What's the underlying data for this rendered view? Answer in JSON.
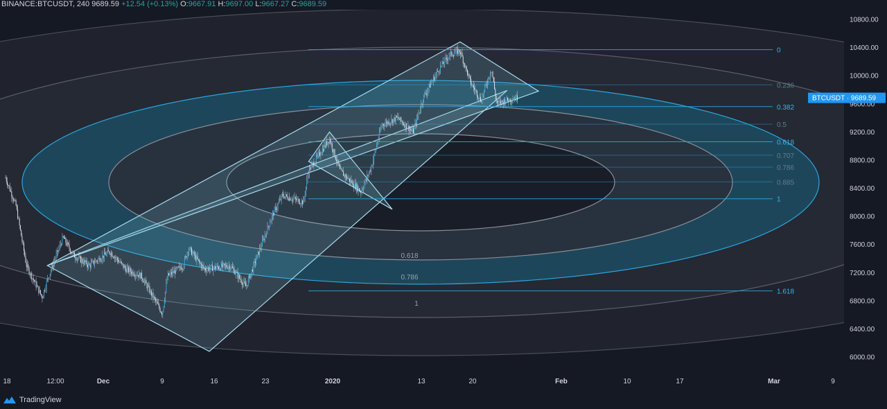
{
  "header": {
    "symbol": "BINANCE:BTCUSDT",
    "interval": "240",
    "price": "9689.59",
    "change": "+12.54 (+0.13%)",
    "o_label": "O:",
    "o": "9667.91",
    "h_label": "H:",
    "h": "9697.00",
    "l_label": "L:",
    "l": "9667.27",
    "c_label": "C:",
    "c": "9689.59"
  },
  "price_tag": {
    "symbol": "BTCUSDT",
    "value": "9689.59"
  },
  "brand": "TradingView",
  "colors": {
    "background": "#151924",
    "candle": "#2aa7e0",
    "wick": "#cfd6df",
    "fib_line": "#2aa7e0",
    "ring_light": "#3a3f4b",
    "ring_blue": "#1c6f8f",
    "tag": "#2196f3"
  },
  "chart_data": {
    "type": "candlestick",
    "title": "",
    "xlabel": "",
    "ylabel": "",
    "ylim": [
      6000,
      10800
    ],
    "y_ticks": [
      "10800.00",
      "10400.00",
      "10000.00",
      "9600.00",
      "9200.00",
      "8800.00",
      "8400.00",
      "8000.00",
      "7600.00",
      "7200.00",
      "6800.00",
      "6400.00",
      "6000.00"
    ],
    "x_ticks": [
      "18",
      "12:00",
      "Dec",
      "9",
      "16",
      "23",
      "2020",
      "13",
      "20",
      "Feb",
      "10",
      "17",
      "Mar",
      "9"
    ],
    "close_path": [
      [
        "2019-11-18",
        8550
      ],
      [
        "2019-11-20",
        8150
      ],
      [
        "2019-11-22",
        7300
      ],
      [
        "2019-11-25",
        6850
      ],
      [
        "2019-11-26",
        7100
      ],
      [
        "2019-11-29",
        7700
      ],
      [
        "2019-12-01",
        7450
      ],
      [
        "2019-12-04",
        7300
      ],
      [
        "2019-12-08",
        7500
      ],
      [
        "2019-12-11",
        7250
      ],
      [
        "2019-12-14",
        7150
      ],
      [
        "2019-12-18",
        6620
      ],
      [
        "2019-12-19",
        7150
      ],
      [
        "2019-12-22",
        7300
      ],
      [
        "2019-12-23",
        7550
      ],
      [
        "2019-12-26",
        7250
      ],
      [
        "2019-12-31",
        7300
      ],
      [
        "2020-01-03",
        7000
      ],
      [
        "2020-01-05",
        7400
      ],
      [
        "2020-01-08",
        8000
      ],
      [
        "2020-01-10",
        8300
      ],
      [
        "2020-01-14",
        8200
      ],
      [
        "2020-01-15",
        8650
      ],
      [
        "2020-01-19",
        9100
      ],
      [
        "2020-01-21",
        8650
      ],
      [
        "2020-01-25",
        8350
      ],
      [
        "2020-01-27",
        8700
      ],
      [
        "2020-01-29",
        9300
      ],
      [
        "2020-02-01",
        9400
      ],
      [
        "2020-02-04",
        9200
      ],
      [
        "2020-02-06",
        9700
      ],
      [
        "2020-02-09",
        10100
      ],
      [
        "2020-02-11",
        10300
      ],
      [
        "2020-02-13",
        10350
      ],
      [
        "2020-02-15",
        9900
      ],
      [
        "2020-02-17",
        9650
      ],
      [
        "2020-02-19",
        10100
      ],
      [
        "2020-02-20",
        9600
      ],
      [
        "2020-02-22",
        9650
      ],
      [
        "2020-02-24",
        9690
      ]
    ],
    "fib_retracement": {
      "levels": [
        {
          "label": "0",
          "price": 10370
        },
        {
          "label": "0.236",
          "price": 9870
        },
        {
          "label": "0.382",
          "price": 9560
        },
        {
          "label": "0.5",
          "price": 9310
        },
        {
          "label": "0.618",
          "price": 9060
        },
        {
          "label": "0.707",
          "price": 8870
        },
        {
          "label": "0.786",
          "price": 8700
        },
        {
          "label": "0.885",
          "price": 8490
        },
        {
          "label": "1",
          "price": 8250
        },
        {
          "label": "1.618",
          "price": 6940
        }
      ]
    },
    "fib_circles_labels": [
      "0.618",
      "0.786",
      "1"
    ],
    "last_price": 9689.59
  }
}
